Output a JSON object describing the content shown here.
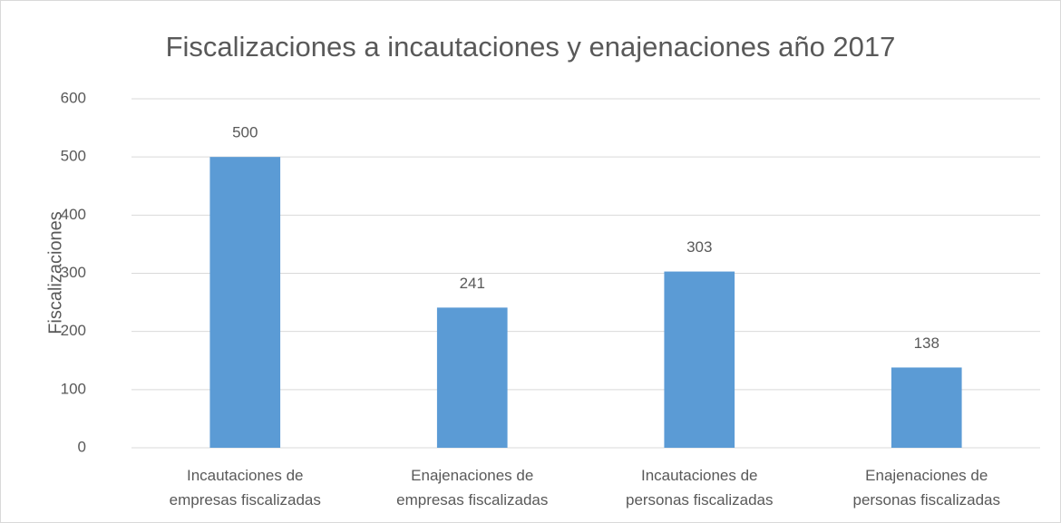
{
  "chart_data": {
    "type": "bar",
    "title": "Fiscalizaciones  a incautaciones y enajenaciones año 2017",
    "y_label": "Fiscalizaciones",
    "categories": [
      [
        "Incautaciones de",
        "empresas fiscalizadas"
      ],
      [
        "Enajenaciones de",
        "empresas fiscalizadas"
      ],
      [
        "Incautaciones de",
        "personas fiscalizadas"
      ],
      [
        "Enajenaciones de",
        "personas fiscalizadas"
      ]
    ],
    "values": [
      500,
      241,
      303,
      138
    ],
    "color": "#5b9bd5",
    "ylim": [
      0,
      600
    ],
    "yticks": [
      0,
      100,
      200,
      300,
      400,
      500,
      600
    ],
    "grid": true
  }
}
